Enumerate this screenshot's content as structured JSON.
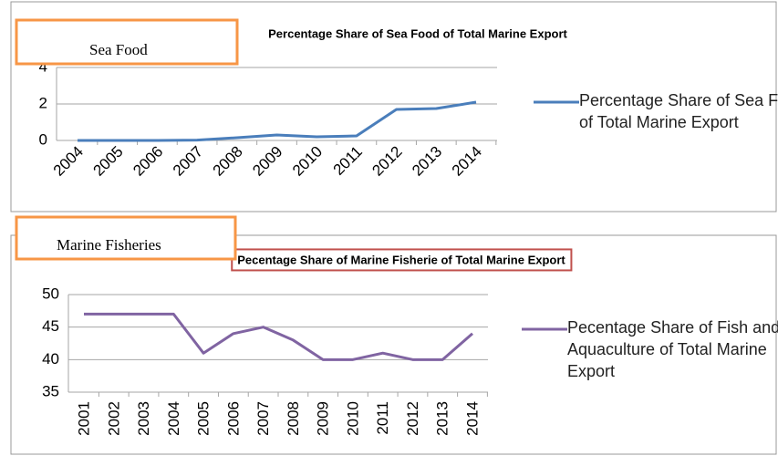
{
  "chart_data": [
    {
      "type": "line",
      "panel_label": "Sea Food",
      "title": "Percentage Share of Sea Food of Total Marine Export",
      "categories": [
        "2004",
        "2005",
        "2006",
        "2007",
        "2008",
        "2009",
        "2010",
        "2011",
        "2012",
        "2013",
        "2014"
      ],
      "series": [
        {
          "name": "Percentage Share of Sea Food of Total Marine Export",
          "color": "#4a7ebb",
          "values": [
            0,
            0,
            0,
            0.02,
            0.15,
            0.3,
            0.2,
            0.25,
            1.7,
            1.75,
            2.1
          ]
        }
      ],
      "ylim": [
        0,
        4
      ],
      "yticks": [
        0,
        2,
        4
      ],
      "grid": true
    },
    {
      "type": "line",
      "panel_label": "Marine Fisheries",
      "title": "Pecentage Share of Marine Fisherie of Total Marine Export",
      "categories": [
        "2001",
        "2002",
        "2003",
        "2004",
        "2005",
        "2006",
        "2007",
        "2008",
        "2009",
        "2010",
        "2011",
        "2012",
        "2013",
        "2014"
      ],
      "series": [
        {
          "name": "Pecentage Share of Fish and Aquaculture of Total Marine Export",
          "color": "#8064a2",
          "values": [
            47,
            47,
            47,
            47,
            41,
            44,
            45,
            43,
            40,
            40,
            41,
            40,
            40,
            44
          ]
        }
      ],
      "ylim": [
        35,
        50
      ],
      "yticks": [
        35,
        40,
        45,
        50
      ],
      "grid": true
    }
  ]
}
